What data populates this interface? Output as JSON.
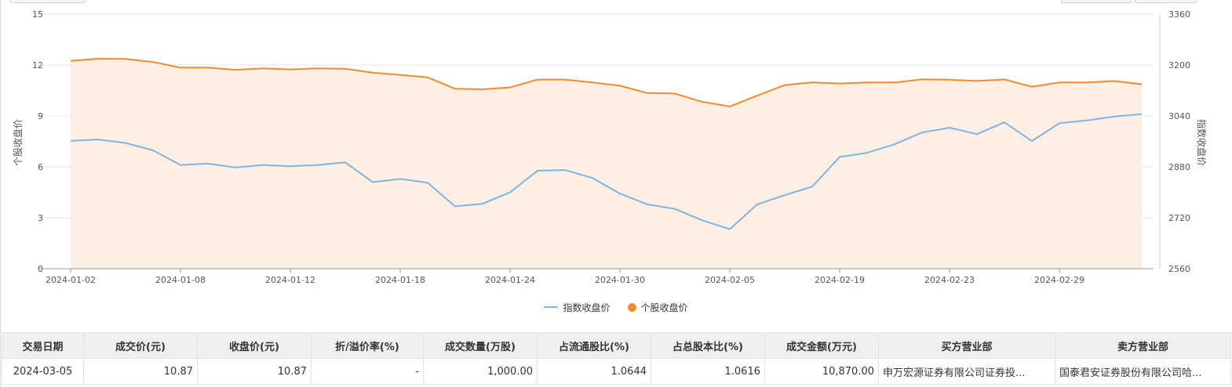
{
  "chart_data": {
    "type": "line",
    "x": [
      "2024-01-02",
      "2024-01-03",
      "2024-01-04",
      "2024-01-05",
      "2024-01-08",
      "2024-01-09",
      "2024-01-10",
      "2024-01-11",
      "2024-01-12",
      "2024-01-15",
      "2024-01-16",
      "2024-01-17",
      "2024-01-18",
      "2024-01-19",
      "2024-01-22",
      "2024-01-23",
      "2024-01-24",
      "2024-01-25",
      "2024-01-26",
      "2024-01-29",
      "2024-01-30",
      "2024-01-31",
      "2024-02-01",
      "2024-02-02",
      "2024-02-05",
      "2024-02-06",
      "2024-02-07",
      "2024-02-08",
      "2024-02-19",
      "2024-02-20",
      "2024-02-21",
      "2024-02-22",
      "2024-02-23",
      "2024-02-26",
      "2024-02-27",
      "2024-02-28",
      "2024-02-29",
      "2024-03-01",
      "2024-03-04",
      "2024-03-05"
    ],
    "x_tick_labels": [
      "2024-01-02",
      "2024-01-08",
      "2024-01-12",
      "2024-01-18",
      "2024-01-24",
      "2024-01-30",
      "2024-02-05",
      "2024-02-19",
      "2024-02-23",
      "2024-02-29"
    ],
    "ylabel_left": "个股收盘价",
    "ylabel_right": "指数收盘价",
    "ylim_left": [
      0,
      15
    ],
    "yticks_left": [
      0,
      3,
      6,
      9,
      12,
      15
    ],
    "ylim_right": [
      2560,
      3360
    ],
    "yticks_right": [
      2560,
      2720,
      2880,
      3040,
      3200,
      3360
    ],
    "grid": true,
    "legend_position": "bottom-center",
    "series": [
      {
        "name": "指数收盘价",
        "axis": "right",
        "color": "#7fb4de",
        "style": "line",
        "values": [
          2962,
          2966,
          2955,
          2932,
          2886,
          2890,
          2878,
          2886,
          2882,
          2886,
          2894,
          2832,
          2842,
          2830,
          2756,
          2764,
          2800,
          2868,
          2870,
          2845,
          2796,
          2762,
          2748,
          2712,
          2684,
          2762,
          2791,
          2818,
          2911,
          2924,
          2951,
          2988,
          3003,
          2983,
          3020,
          2961,
          3017,
          3026,
          3038,
          3046
        ]
      },
      {
        "name": "个股收盘价",
        "axis": "left",
        "color": "#f28a2e",
        "style": "area",
        "values": [
          12.25,
          12.37,
          12.36,
          12.18,
          11.85,
          11.85,
          11.72,
          11.8,
          11.74,
          11.8,
          11.78,
          11.55,
          11.42,
          11.27,
          10.6,
          10.57,
          10.68,
          11.14,
          11.14,
          10.97,
          10.78,
          10.35,
          10.32,
          9.83,
          9.56,
          10.2,
          10.82,
          10.98,
          10.91,
          10.97,
          10.97,
          11.16,
          11.13,
          11.06,
          11.15,
          10.72,
          10.97,
          10.97,
          11.06,
          10.87
        ]
      }
    ]
  },
  "colors": {
    "index_line": "#7fb4de",
    "stock_line": "#f28a2e",
    "stock_fill": "#fdefe4",
    "grid": "#e6e6e6",
    "axis": "#999999"
  },
  "table": {
    "headers": [
      "交易日期",
      "成交价(元)",
      "收盘价(元)",
      "折/溢价率(%)",
      "成交数量(万股)",
      "占流通股比(%)",
      "占总股本比(%)",
      "成交金额(万元)",
      "买方营业部",
      "卖方营业部"
    ],
    "rows": [
      [
        "2024-03-05",
        "10.87",
        "10.87",
        "-",
        "1,000.00",
        "1.0644",
        "1.0616",
        "10,870.00",
        "申万宏源证券有限公司证券投...",
        "国泰君安证券股份有限公司哈..."
      ]
    ]
  }
}
